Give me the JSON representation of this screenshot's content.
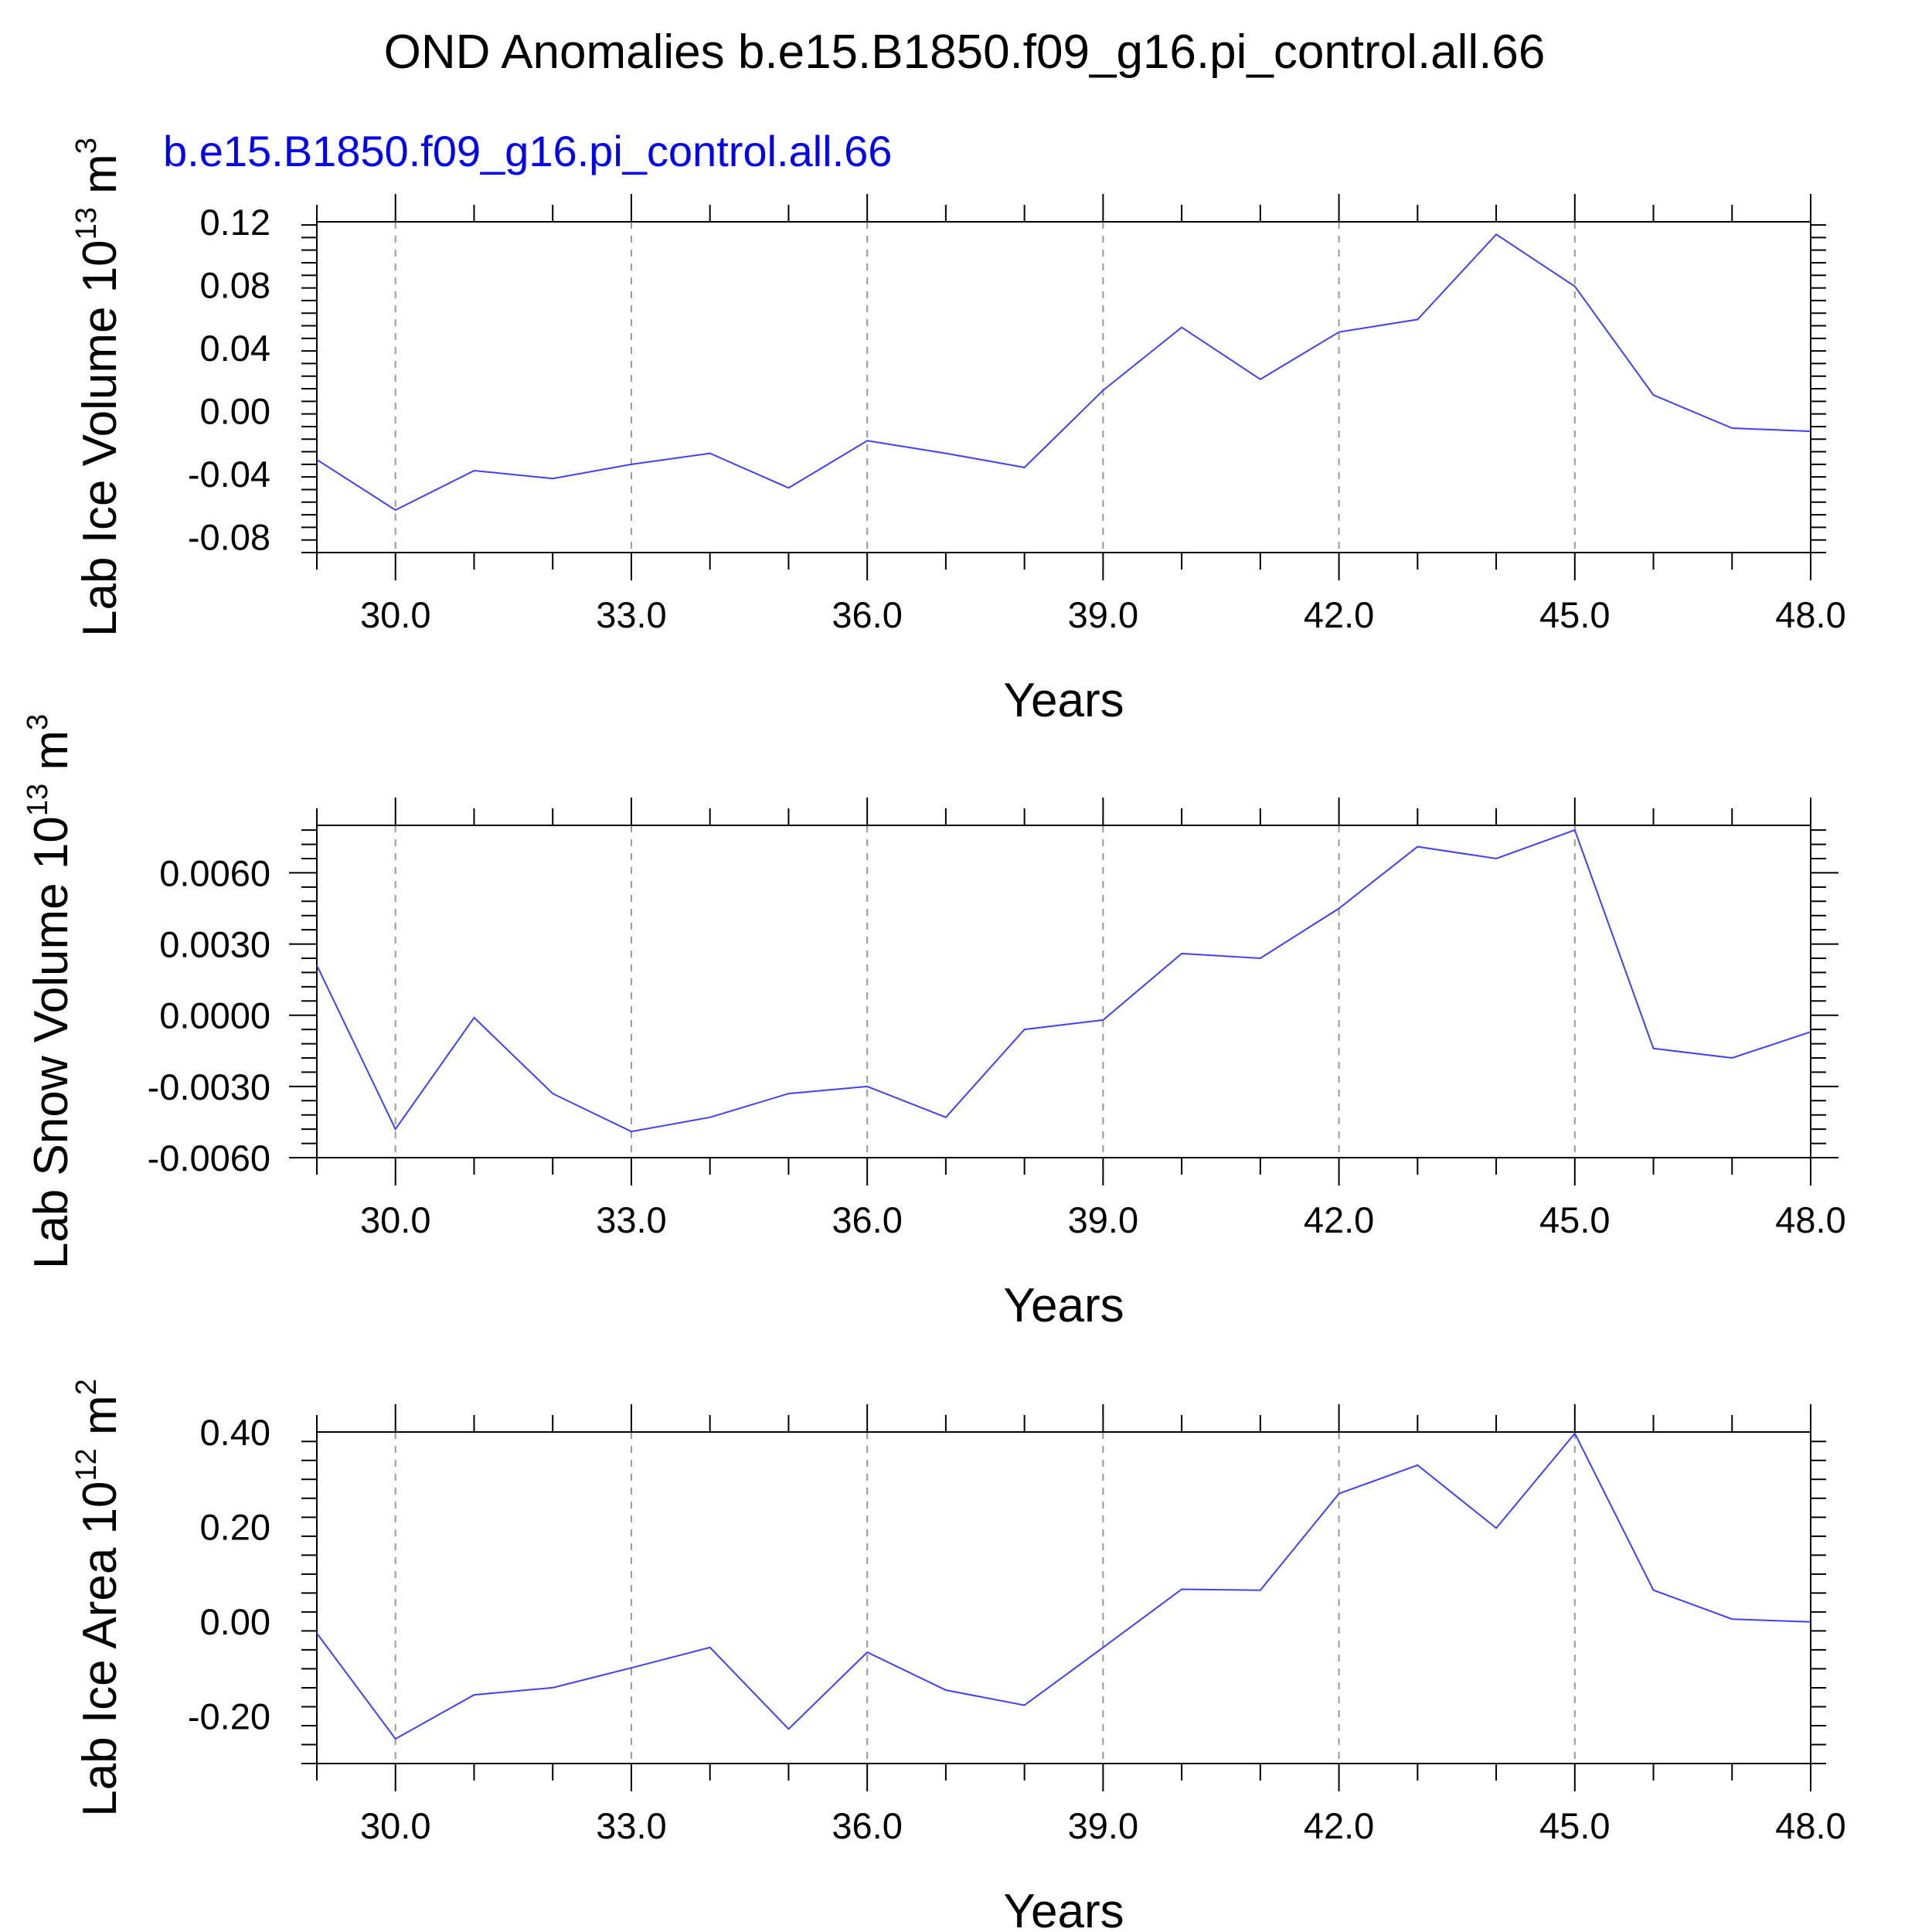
{
  "figure_title": "OND Anomalies b.e15.B1850.f09_g16.pi_control.all.66",
  "colors": {
    "series": "#3f3fff",
    "subtitle": "#0000ff",
    "axis": "#000000",
    "grid": "#999999"
  },
  "chart_data": [
    {
      "type": "line",
      "subtitle": "b.e15.B1850.f09_g16.pi_control.all.66",
      "ylabel": "Lab Ice Volume 10",
      "ylabel_exp": "13",
      "ylabel_unit": " m",
      "ylabel_unit_exp": "3",
      "xlabel": "Years",
      "xlim": [
        29,
        48
      ],
      "ylim": [
        -0.09,
        0.12
      ],
      "x_ticks": [
        30,
        33,
        36,
        39,
        42,
        45,
        48
      ],
      "x_tick_labels": [
        "30.0",
        "33.0",
        "36.0",
        "39.0",
        "42.0",
        "45.0",
        "48.0"
      ],
      "y_ticks": [
        -0.08,
        -0.04,
        0.0,
        0.04,
        0.08,
        0.12
      ],
      "y_tick_labels": [
        "-0.08",
        "-0.04",
        "0.00",
        "0.04",
        "0.08",
        "0.12"
      ],
      "grid": "dashed vertical at major x ticks",
      "x": [
        29,
        30,
        31,
        32,
        33,
        34,
        35,
        36,
        37,
        38,
        39,
        40,
        41,
        42,
        43,
        44,
        45,
        46,
        47,
        48
      ],
      "y": [
        -0.031,
        -0.063,
        -0.038,
        -0.043,
        -0.034,
        -0.027,
        -0.049,
        -0.019,
        -0.027,
        -0.036,
        0.013,
        0.053,
        0.02,
        0.05,
        0.058,
        0.112,
        0.079,
        0.01,
        -0.011,
        -0.013
      ]
    },
    {
      "type": "line",
      "subtitle": "",
      "ylabel": "Lab Snow Volume 10",
      "ylabel_exp": "13",
      "ylabel_unit": " m",
      "ylabel_unit_exp": "3",
      "xlabel": "Years",
      "xlim": [
        29,
        48
      ],
      "ylim": [
        -0.006,
        0.008
      ],
      "x_ticks": [
        30,
        33,
        36,
        39,
        42,
        45,
        48
      ],
      "x_tick_labels": [
        "30.0",
        "33.0",
        "36.0",
        "39.0",
        "42.0",
        "45.0",
        "48.0"
      ],
      "y_ticks": [
        -0.006,
        -0.003,
        0.0,
        0.003,
        0.006
      ],
      "y_tick_labels": [
        "-0.0060",
        "-0.0030",
        "0.0000",
        "0.0030",
        "0.0060"
      ],
      "grid": "dashed vertical at major x ticks",
      "x": [
        29,
        30,
        31,
        32,
        33,
        34,
        35,
        36,
        37,
        38,
        39,
        40,
        41,
        42,
        43,
        44,
        45,
        46,
        47,
        48
      ],
      "y": [
        0.0021,
        -0.0048,
        -0.0001,
        -0.0033,
        -0.0049,
        -0.0043,
        -0.0033,
        -0.003,
        -0.0043,
        -0.0006,
        -0.0002,
        0.0026,
        0.0024,
        0.0045,
        0.0071,
        0.0066,
        0.0078,
        -0.0014,
        -0.0018,
        -0.0007
      ]
    },
    {
      "type": "line",
      "subtitle": "",
      "ylabel": "Lab Ice Area 10",
      "ylabel_exp": "12",
      "ylabel_unit": " m",
      "ylabel_unit_exp": "2",
      "xlabel": "Years",
      "xlim": [
        29,
        48
      ],
      "ylim": [
        -0.3,
        0.4
      ],
      "x_ticks": [
        30,
        33,
        36,
        39,
        42,
        45,
        48
      ],
      "x_tick_labels": [
        "30.0",
        "33.0",
        "36.0",
        "39.0",
        "42.0",
        "45.0",
        "48.0"
      ],
      "y_ticks": [
        -0.2,
        0.0,
        0.2,
        0.4
      ],
      "y_tick_labels": [
        "-0.20",
        "0.00",
        "0.20",
        "0.40"
      ],
      "grid": "dashed vertical at major x ticks",
      "x": [
        29,
        30,
        31,
        32,
        33,
        34,
        35,
        36,
        37,
        38,
        39,
        40,
        41,
        42,
        43,
        44,
        45,
        46,
        47,
        48
      ],
      "y": [
        -0.025,
        -0.248,
        -0.155,
        -0.14,
        -0.098,
        -0.055,
        -0.227,
        -0.065,
        -0.145,
        -0.177,
        -0.055,
        0.068,
        0.066,
        0.27,
        0.33,
        0.197,
        0.397,
        0.066,
        0.005,
        -0.001
      ]
    }
  ]
}
